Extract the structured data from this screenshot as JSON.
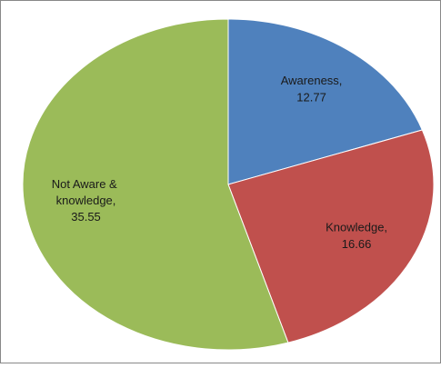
{
  "chart_data": {
    "type": "pie",
    "categories": [
      "Awareness,",
      "Knowledge,",
      "Not Aware & knowledge,"
    ],
    "values": [
      12.77,
      16.66,
      35.55
    ],
    "colors": [
      "#4f81bd",
      "#c0504d",
      "#9bbb59"
    ],
    "start_angle": 90,
    "direction": "clockwise"
  }
}
